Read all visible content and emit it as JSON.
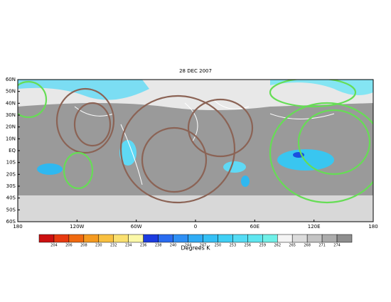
{
  "title": "28 DEC 2007",
  "map": {
    "lat_labels": [
      "60N",
      "50N",
      "40N",
      "30N",
      "20N",
      "10N",
      "EQ",
      "10S",
      "20S",
      "30S",
      "40S",
      "50S",
      "60S"
    ],
    "lon_labels": [
      "180",
      "120W",
      "60W",
      "0",
      "60E",
      "120E",
      "180"
    ]
  },
  "colorbar": {
    "labels": [
      "204",
      "206",
      "208",
      "230",
      "232",
      "234",
      "236",
      "238",
      "240",
      "244",
      "247",
      "250",
      "253",
      "256",
      "259",
      "262",
      "265",
      "268",
      "271",
      "274"
    ],
    "unit": "Degrees K"
  }
}
